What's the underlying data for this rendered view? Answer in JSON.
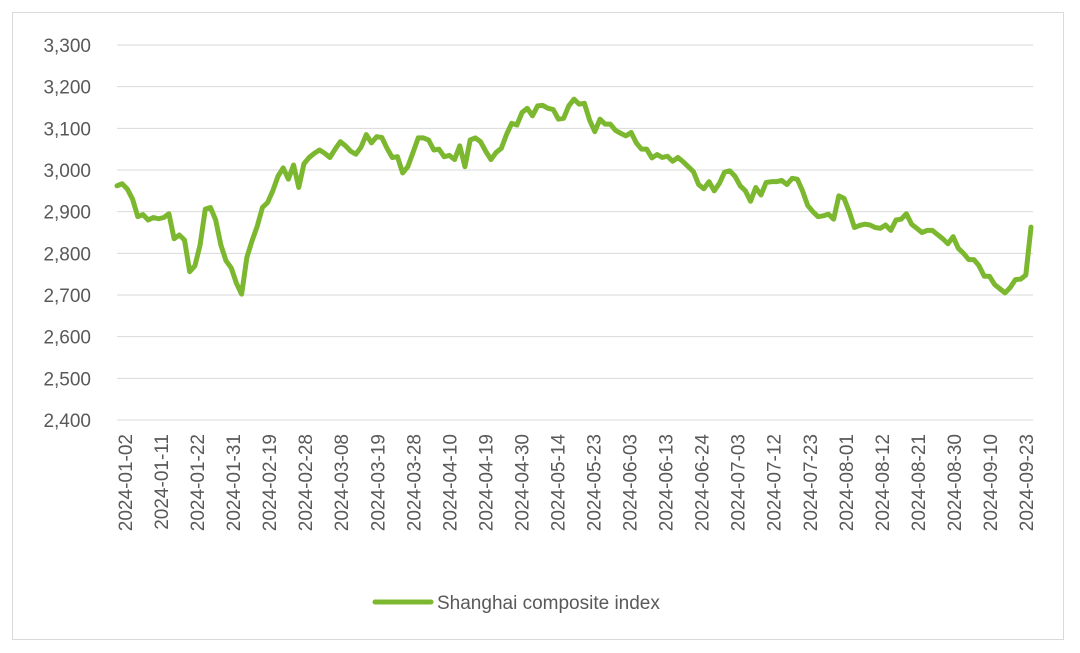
{
  "chart_data": {
    "type": "line",
    "title": "",
    "xlabel": "",
    "ylabel": "",
    "ylim": [
      2400,
      3300
    ],
    "yticks": [
      "2,400",
      "2,500",
      "2,600",
      "2,700",
      "2,800",
      "2,900",
      "3,000",
      "3,100",
      "3,200",
      "3,300"
    ],
    "ytick_values": [
      2400,
      2500,
      2600,
      2700,
      2800,
      2900,
      3000,
      3100,
      3200,
      3300
    ],
    "xticks": [
      "2024-01-02",
      "2024-01-11",
      "2024-01-22",
      "2024-01-31",
      "2024-02-19",
      "2024-02-28",
      "2024-03-08",
      "2024-03-19",
      "2024-03-28",
      "2024-04-10",
      "2024-04-19",
      "2024-04-30",
      "2024-05-14",
      "2024-05-23",
      "2024-06-03",
      "2024-06-13",
      "2024-06-24",
      "2024-07-03",
      "2024-07-12",
      "2024-07-23",
      "2024-08-01",
      "2024-08-12",
      "2024-08-21",
      "2024-08-30",
      "2024-09-10",
      "2024-09-23"
    ],
    "grid": true,
    "legend_position": "bottom",
    "color": "#7cb82f",
    "series": [
      {
        "name": "Shanghai composite index",
        "values": [
          2962,
          2967,
          2954,
          2930,
          2888,
          2893,
          2880,
          2886,
          2883,
          2886,
          2895,
          2835,
          2844,
          2832,
          2756,
          2770,
          2820,
          2906,
          2910,
          2880,
          2820,
          2782,
          2765,
          2728,
          2702,
          2790,
          2830,
          2865,
          2910,
          2922,
          2950,
          2985,
          3005,
          2978,
          3012,
          2958,
          3015,
          3030,
          3040,
          3048,
          3040,
          3030,
          3050,
          3068,
          3058,
          3045,
          3038,
          3055,
          3085,
          3065,
          3080,
          3078,
          3052,
          3030,
          3032,
          2993,
          3008,
          3042,
          3077,
          3077,
          3072,
          3048,
          3050,
          3032,
          3035,
          3025,
          3058,
          3008,
          3072,
          3077,
          3068,
          3045,
          3025,
          3042,
          3052,
          3085,
          3112,
          3108,
          3138,
          3148,
          3130,
          3154,
          3155,
          3148,
          3145,
          3122,
          3124,
          3154,
          3170,
          3158,
          3160,
          3120,
          3092,
          3122,
          3110,
          3110,
          3095,
          3088,
          3082,
          3090,
          3065,
          3050,
          3050,
          3029,
          3037,
          3030,
          3033,
          3021,
          3030,
          3020,
          3008,
          2996,
          2965,
          2955,
          2972,
          2950,
          2968,
          2995,
          2998,
          2985,
          2962,
          2950,
          2925,
          2958,
          2940,
          2970,
          2972,
          2972,
          2975,
          2965,
          2980,
          2978,
          2950,
          2915,
          2900,
          2888,
          2890,
          2894,
          2882,
          2938,
          2932,
          2900,
          2862,
          2867,
          2870,
          2868,
          2862,
          2860,
          2868,
          2855,
          2880,
          2882,
          2895,
          2870,
          2860,
          2850,
          2855,
          2855,
          2845,
          2835,
          2823,
          2840,
          2812,
          2800,
          2785,
          2785,
          2770,
          2745,
          2745,
          2725,
          2715,
          2705,
          2718,
          2737,
          2738,
          2748,
          2863
        ]
      }
    ]
  }
}
